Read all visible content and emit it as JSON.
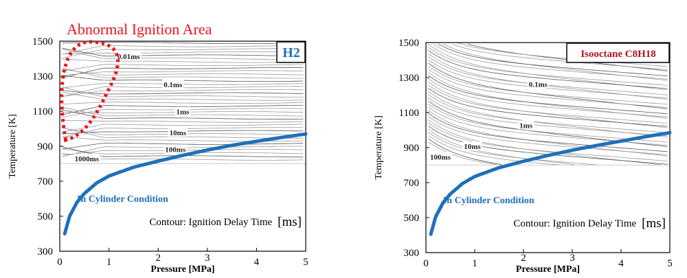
{
  "chart_data": [
    {
      "type": "line",
      "title": "H2",
      "annotation": "Abnormal Ignition Area",
      "xlabel": "Pressure [MPa]",
      "ylabel": "Temperature [K]",
      "xlim": [
        0,
        5
      ],
      "ylim": [
        300,
        1500
      ],
      "xticks": [
        0,
        1,
        2,
        3,
        4,
        5
      ],
      "yticks": [
        300,
        500,
        700,
        900,
        1100,
        1300,
        1500
      ],
      "contour_note": "Contour: Ignition Delay Time",
      "contour_unit": "[ms]",
      "contour_region_min_T": 800,
      "contour_labels": [
        {
          "text": "0.01ms",
          "p": 1.4,
          "T": 1405
        },
        {
          "text": "0.1ms",
          "p": 2.3,
          "T": 1245
        },
        {
          "text": "1ms",
          "p": 2.5,
          "T": 1090
        },
        {
          "text": "10ms",
          "p": 2.4,
          "T": 970
        },
        {
          "text": "100ms",
          "p": 2.35,
          "T": 875
        },
        {
          "text": "1000ms",
          "p": 0.55,
          "T": 822
        }
      ],
      "series": [
        {
          "name": "In Cylinder Condition",
          "color": "#1f6fba",
          "x": [
            0.1,
            0.2,
            0.35,
            0.5,
            0.75,
            1,
            1.5,
            2,
            2.5,
            3,
            3.5,
            4,
            4.5,
            5
          ],
          "y": [
            400,
            500,
            580,
            630,
            690,
            730,
            780,
            815,
            848,
            878,
            905,
            928,
            950,
            970
          ]
        }
      ]
    },
    {
      "type": "line",
      "title": "Isooctane C8H18",
      "xlabel": "Pressure [MPa]",
      "ylabel": "Temperature [K]",
      "xlim": [
        0,
        5
      ],
      "ylim": [
        300,
        1500
      ],
      "xticks": [
        0,
        1,
        2,
        3,
        4,
        5
      ],
      "yticks": [
        300,
        500,
        700,
        900,
        1100,
        1300,
        1500
      ],
      "contour_note": "Contour: Ignition Delay Time",
      "contour_unit": "[ms]",
      "contour_region_min_T": 800,
      "contour_labels": [
        {
          "text": "0.1ms",
          "p": 2.3,
          "T": 1255
        },
        {
          "text": "1ms",
          "p": 2.05,
          "T": 1020
        },
        {
          "text": "10ms",
          "p": 0.95,
          "T": 900
        },
        {
          "text": "100ms",
          "p": 0.08,
          "T": 840
        }
      ],
      "series": [
        {
          "name": "In Cylinder Condition",
          "color": "#1f6fba",
          "x": [
            0.1,
            0.2,
            0.35,
            0.5,
            0.75,
            1,
            1.5,
            2,
            2.5,
            3,
            3.5,
            4,
            4.5,
            5
          ],
          "y": [
            405,
            505,
            585,
            635,
            695,
            735,
            785,
            822,
            855,
            885,
            912,
            937,
            962,
            985
          ]
        }
      ]
    }
  ]
}
